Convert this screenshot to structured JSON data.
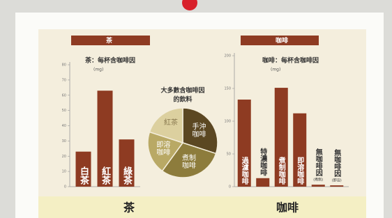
{
  "chart_data": [
    {
      "type": "bar",
      "header": "茶",
      "title": "茶：每杯含咖啡因",
      "unit": "(mg)",
      "caption": "茶",
      "categories": [
        "白茶",
        "紅茶",
        "綠茶"
      ],
      "category_notes": [
        null,
        null,
        null
      ],
      "values": [
        23,
        63,
        31
      ],
      "color": "#8e3b22",
      "ylim": [
        0,
        80
      ],
      "yticks": [
        0,
        10,
        20,
        30,
        40,
        50,
        60,
        70,
        80
      ]
    },
    {
      "type": "pie",
      "title_lines": [
        "大多數含咖啡因",
        "的飲料"
      ],
      "categories": [
        "手沖咖啡",
        "煮制咖啡",
        "即溶咖啡",
        "紅茶"
      ],
      "values": [
        30,
        30,
        20,
        20
      ],
      "colors": [
        "#5b4722",
        "#8d7c3c",
        "#b9a965",
        "#dcd09f"
      ]
    },
    {
      "type": "bar",
      "header": "咖啡",
      "title": "咖啡：每杯含咖啡因",
      "unit": "(mg)",
      "caption": "咖啡",
      "categories": [
        "過濾咖啡",
        "特濃咖啡",
        "煮制咖啡",
        "即溶咖啡",
        "無咖啡因",
        "無咖啡因"
      ],
      "category_notes": [
        null,
        null,
        null,
        null,
        "(煮制)",
        "(即溶)"
      ],
      "values": [
        133,
        13,
        151,
        112,
        3,
        2
      ],
      "color": "#8e3b22",
      "ylim": [
        0,
        200
      ],
      "yticks": [
        0,
        50,
        100,
        150,
        200
      ]
    }
  ]
}
